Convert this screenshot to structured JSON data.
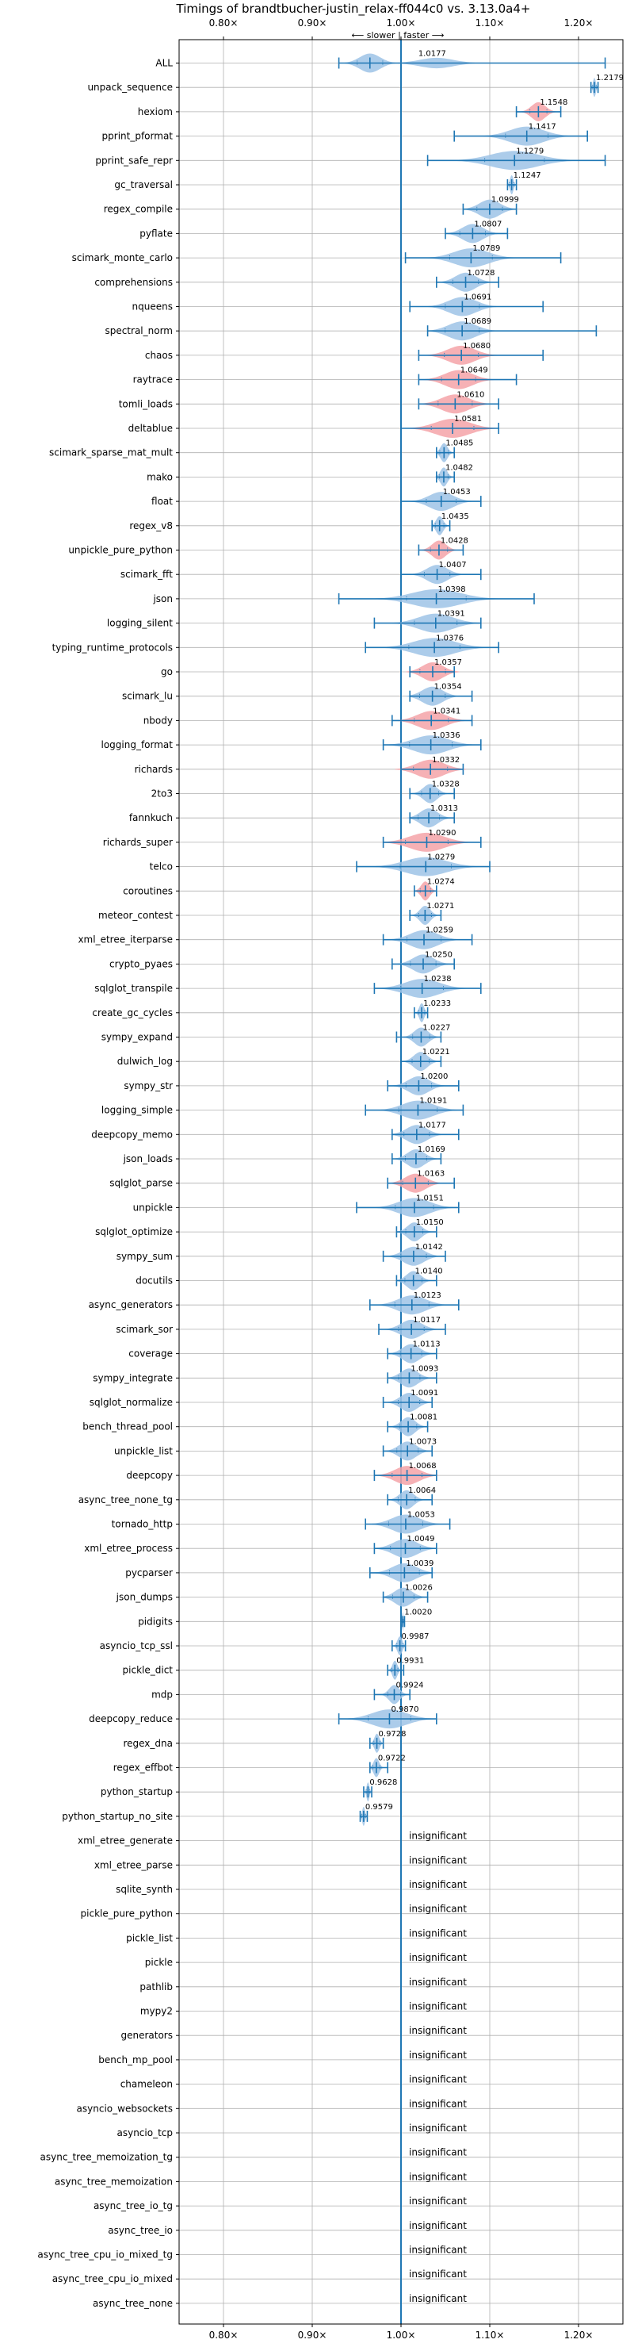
{
  "chart_data": {
    "type": "violin",
    "title": "Timings of brandtbucher-justin_relax-ff044c0 vs. 3.13.0a4+",
    "direction_label": "⟵ slower | faster ⟶",
    "xlim": [
      0.75,
      1.25
    ],
    "xticks": [
      0.8,
      0.9,
      1.0,
      1.1,
      1.2
    ],
    "xtick_labels": [
      "0.80×",
      "0.90×",
      "1.00×",
      "1.10×",
      "1.20×"
    ],
    "reference_line": 1.0,
    "grid": true,
    "colors": {
      "faster": "#9ec3e6",
      "slower": "#f4a3a8",
      "line": "#1f77b4"
    },
    "insignificant_label": "insignificant",
    "benchmarks": [
      {
        "name": "ALL",
        "mean": 0.965,
        "label": "1.0177",
        "min": 0.93,
        "max": 1.23,
        "color": "faster",
        "spread": 0.03,
        "secondary": {
          "mean": 1.04,
          "spread": 0.05
        }
      },
      {
        "name": "unpack_sequence",
        "mean": 1.2179,
        "label": "1.2179",
        "min": 1.214,
        "max": 1.222,
        "color": "faster",
        "spread": 0.004
      },
      {
        "name": "hexiom",
        "mean": 1.1548,
        "label": "1.1548",
        "min": 1.13,
        "max": 1.18,
        "color": "slower",
        "spread": 0.02
      },
      {
        "name": "pprint_pformat",
        "mean": 1.1417,
        "label": "1.1417",
        "min": 1.06,
        "max": 1.21,
        "color": "faster",
        "spread": 0.05
      },
      {
        "name": "pprint_safe_repr",
        "mean": 1.1279,
        "label": "1.1279",
        "min": 1.03,
        "max": 1.23,
        "color": "faster",
        "spread": 0.07
      },
      {
        "name": "gc_traversal",
        "mean": 1.1247,
        "label": "1.1247",
        "min": 1.12,
        "max": 1.13,
        "color": "faster",
        "spread": 0.005
      },
      {
        "name": "regex_compile",
        "mean": 1.0999,
        "label": "1.0999",
        "min": 1.07,
        "max": 1.13,
        "color": "faster",
        "spread": 0.03
      },
      {
        "name": "pyflate",
        "mean": 1.0807,
        "label": "1.0807",
        "min": 1.05,
        "max": 1.12,
        "color": "faster",
        "spread": 0.03
      },
      {
        "name": "scimark_monte_carlo",
        "mean": 1.0789,
        "label": "1.0789",
        "min": 1.005,
        "max": 1.18,
        "color": "faster",
        "spread": 0.05
      },
      {
        "name": "comprehensions",
        "mean": 1.0728,
        "label": "1.0728",
        "min": 1.04,
        "max": 1.11,
        "color": "faster",
        "spread": 0.03
      },
      {
        "name": "nqueens",
        "mean": 1.0691,
        "label": "1.0691",
        "min": 1.01,
        "max": 1.16,
        "color": "faster",
        "spread": 0.04
      },
      {
        "name": "spectral_norm",
        "mean": 1.0689,
        "label": "1.0689",
        "min": 1.03,
        "max": 1.22,
        "color": "faster",
        "spread": 0.04
      },
      {
        "name": "chaos",
        "mean": 1.068,
        "label": "1.0680",
        "min": 1.02,
        "max": 1.16,
        "color": "slower",
        "spread": 0.04
      },
      {
        "name": "raytrace",
        "mean": 1.0649,
        "label": "1.0649",
        "min": 1.02,
        "max": 1.13,
        "color": "slower",
        "spread": 0.04
      },
      {
        "name": "tomli_loads",
        "mean": 1.061,
        "label": "1.0610",
        "min": 1.02,
        "max": 1.11,
        "color": "slower",
        "spread": 0.04
      },
      {
        "name": "deltablue",
        "mean": 1.0581,
        "label": "1.0581",
        "min": 1.0,
        "max": 1.11,
        "color": "slower",
        "spread": 0.05
      },
      {
        "name": "scimark_sparse_mat_mult",
        "mean": 1.0485,
        "label": "1.0485",
        "min": 1.04,
        "max": 1.06,
        "color": "faster",
        "spread": 0.01
      },
      {
        "name": "mako",
        "mean": 1.0482,
        "label": "1.0482",
        "min": 1.04,
        "max": 1.06,
        "color": "faster",
        "spread": 0.01
      },
      {
        "name": "float",
        "mean": 1.0453,
        "label": "1.0453",
        "min": 1.0,
        "max": 1.09,
        "color": "faster",
        "spread": 0.035
      },
      {
        "name": "regex_v8",
        "mean": 1.0435,
        "label": "1.0435",
        "min": 1.035,
        "max": 1.055,
        "color": "faster",
        "spread": 0.01
      },
      {
        "name": "unpickle_pure_python",
        "mean": 1.0428,
        "label": "1.0428",
        "min": 1.02,
        "max": 1.07,
        "color": "slower",
        "spread": 0.02
      },
      {
        "name": "scimark_fft",
        "mean": 1.0407,
        "label": "1.0407",
        "min": 1.0,
        "max": 1.09,
        "color": "faster",
        "spread": 0.03
      },
      {
        "name": "json",
        "mean": 1.0398,
        "label": "1.0398",
        "min": 0.93,
        "max": 1.15,
        "color": "faster",
        "spread": 0.07
      },
      {
        "name": "logging_silent",
        "mean": 1.0391,
        "label": "1.0391",
        "min": 0.97,
        "max": 1.09,
        "color": "faster",
        "spread": 0.05
      },
      {
        "name": "typing_runtime_protocols",
        "mean": 1.0376,
        "label": "1.0376",
        "min": 0.96,
        "max": 1.11,
        "color": "faster",
        "spread": 0.06
      },
      {
        "name": "go",
        "mean": 1.0357,
        "label": "1.0357",
        "min": 1.01,
        "max": 1.06,
        "color": "slower",
        "spread": 0.03
      },
      {
        "name": "scimark_lu",
        "mean": 1.0354,
        "label": "1.0354",
        "min": 1.01,
        "max": 1.08,
        "color": "faster",
        "spread": 0.03
      },
      {
        "name": "nbody",
        "mean": 1.0341,
        "label": "1.0341",
        "min": 0.99,
        "max": 1.08,
        "color": "slower",
        "spread": 0.04
      },
      {
        "name": "logging_format",
        "mean": 1.0336,
        "label": "1.0336",
        "min": 0.98,
        "max": 1.09,
        "color": "faster",
        "spread": 0.05
      },
      {
        "name": "richards",
        "mean": 1.0332,
        "label": "1.0332",
        "min": 1.0,
        "max": 1.07,
        "color": "slower",
        "spread": 0.04
      },
      {
        "name": "2to3",
        "mean": 1.0328,
        "label": "1.0328",
        "min": 1.01,
        "max": 1.06,
        "color": "faster",
        "spread": 0.02
      },
      {
        "name": "fannkuch",
        "mean": 1.0313,
        "label": "1.0313",
        "min": 1.01,
        "max": 1.06,
        "color": "faster",
        "spread": 0.025
      },
      {
        "name": "richards_super",
        "mean": 1.029,
        "label": "1.0290",
        "min": 0.98,
        "max": 1.09,
        "color": "slower",
        "spread": 0.05
      },
      {
        "name": "telco",
        "mean": 1.0279,
        "label": "1.0279",
        "min": 0.95,
        "max": 1.1,
        "color": "faster",
        "spread": 0.06
      },
      {
        "name": "coroutines",
        "mean": 1.0274,
        "label": "1.0274",
        "min": 1.015,
        "max": 1.04,
        "color": "slower",
        "spread": 0.012
      },
      {
        "name": "meteor_contest",
        "mean": 1.0271,
        "label": "1.0271",
        "min": 1.01,
        "max": 1.045,
        "color": "faster",
        "spread": 0.015
      },
      {
        "name": "xml_etree_iterparse",
        "mean": 1.0259,
        "label": "1.0259",
        "min": 0.98,
        "max": 1.08,
        "color": "faster",
        "spread": 0.04
      },
      {
        "name": "crypto_pyaes",
        "mean": 1.025,
        "label": "1.0250",
        "min": 0.99,
        "max": 1.06,
        "color": "faster",
        "spread": 0.03
      },
      {
        "name": "sqlglot_transpile",
        "mean": 1.0238,
        "label": "1.0238",
        "min": 0.97,
        "max": 1.09,
        "color": "faster",
        "spread": 0.05
      },
      {
        "name": "create_gc_cycles",
        "mean": 1.0233,
        "label": "1.0233",
        "min": 1.015,
        "max": 1.03,
        "color": "faster",
        "spread": 0.007
      },
      {
        "name": "sympy_expand",
        "mean": 1.0227,
        "label": "1.0227",
        "min": 0.995,
        "max": 1.045,
        "color": "faster",
        "spread": 0.02
      },
      {
        "name": "dulwich_log",
        "mean": 1.0221,
        "label": "1.0221",
        "min": 1.0,
        "max": 1.045,
        "color": "faster",
        "spread": 0.02
      },
      {
        "name": "sympy_str",
        "mean": 1.02,
        "label": "1.0200",
        "min": 0.985,
        "max": 1.065,
        "color": "faster",
        "spread": 0.03
      },
      {
        "name": "logging_simple",
        "mean": 1.0191,
        "label": "1.0191",
        "min": 0.96,
        "max": 1.07,
        "color": "faster",
        "spread": 0.045
      },
      {
        "name": "deepcopy_memo",
        "mean": 1.0177,
        "label": "1.0177",
        "min": 0.99,
        "max": 1.065,
        "color": "faster",
        "spread": 0.03
      },
      {
        "name": "json_loads",
        "mean": 1.0169,
        "label": "1.0169",
        "min": 0.99,
        "max": 1.045,
        "color": "faster",
        "spread": 0.025
      },
      {
        "name": "sqlglot_parse",
        "mean": 1.0163,
        "label": "1.0163",
        "min": 0.985,
        "max": 1.06,
        "color": "slower",
        "spread": 0.03
      },
      {
        "name": "unpickle",
        "mean": 1.0151,
        "label": "1.0151",
        "min": 0.95,
        "max": 1.065,
        "color": "faster",
        "spread": 0.045
      },
      {
        "name": "sqlglot_optimize",
        "mean": 1.015,
        "label": "1.0150",
        "min": 0.995,
        "max": 1.04,
        "color": "faster",
        "spread": 0.02
      },
      {
        "name": "sympy_sum",
        "mean": 1.0142,
        "label": "1.0142",
        "min": 0.98,
        "max": 1.05,
        "color": "faster",
        "spread": 0.03
      },
      {
        "name": "docutils",
        "mean": 1.014,
        "label": "1.0140",
        "min": 0.995,
        "max": 1.04,
        "color": "faster",
        "spread": 0.02
      },
      {
        "name": "async_generators",
        "mean": 1.0123,
        "label": "1.0123",
        "min": 0.965,
        "max": 1.065,
        "color": "faster",
        "spread": 0.04
      },
      {
        "name": "scimark_sor",
        "mean": 1.0117,
        "label": "1.0117",
        "min": 0.975,
        "max": 1.05,
        "color": "faster",
        "spread": 0.03
      },
      {
        "name": "coverage",
        "mean": 1.0113,
        "label": "1.0113",
        "min": 0.985,
        "max": 1.04,
        "color": "faster",
        "spread": 0.025
      },
      {
        "name": "sympy_integrate",
        "mean": 1.0093,
        "label": "1.0093",
        "min": 0.985,
        "max": 1.04,
        "color": "faster",
        "spread": 0.025
      },
      {
        "name": "sqlglot_normalize",
        "mean": 1.0091,
        "label": "1.0091",
        "min": 0.98,
        "max": 1.035,
        "color": "faster",
        "spread": 0.025
      },
      {
        "name": "bench_thread_pool",
        "mean": 1.0081,
        "label": "1.0081",
        "min": 0.985,
        "max": 1.03,
        "color": "faster",
        "spread": 0.02
      },
      {
        "name": "unpickle_list",
        "mean": 1.0073,
        "label": "1.0073",
        "min": 0.98,
        "max": 1.035,
        "color": "faster",
        "spread": 0.025
      },
      {
        "name": "deepcopy",
        "mean": 1.0068,
        "label": "1.0068",
        "min": 0.97,
        "max": 1.04,
        "color": "slower",
        "spread": 0.035
      },
      {
        "name": "async_tree_none_tg",
        "mean": 1.0064,
        "label": "1.0064",
        "min": 0.985,
        "max": 1.035,
        "color": "faster",
        "spread": 0.02
      },
      {
        "name": "tornado_http",
        "mean": 1.0053,
        "label": "1.0053",
        "min": 0.96,
        "max": 1.055,
        "color": "faster",
        "spread": 0.04
      },
      {
        "name": "xml_etree_process",
        "mean": 1.0049,
        "label": "1.0049",
        "min": 0.97,
        "max": 1.04,
        "color": "faster",
        "spread": 0.035
      },
      {
        "name": "pycparser",
        "mean": 1.0039,
        "label": "1.0039",
        "min": 0.965,
        "max": 1.035,
        "color": "faster",
        "spread": 0.035
      },
      {
        "name": "json_dumps",
        "mean": 1.0026,
        "label": "1.0026",
        "min": 0.98,
        "max": 1.03,
        "color": "faster",
        "spread": 0.025
      },
      {
        "name": "pidigits",
        "mean": 1.002,
        "label": "1.0020",
        "min": 1.0,
        "max": 1.004,
        "color": "faster",
        "spread": 0.002
      },
      {
        "name": "asyncio_tcp_ssl",
        "mean": 0.9987,
        "label": "0.9987",
        "min": 0.99,
        "max": 1.005,
        "color": "faster",
        "spread": 0.007
      },
      {
        "name": "pickle_dict",
        "mean": 0.9931,
        "label": "0.9931",
        "min": 0.985,
        "max": 1.003,
        "color": "faster",
        "spread": 0.007
      },
      {
        "name": "mdp",
        "mean": 0.9924,
        "label": "0.9924",
        "min": 0.97,
        "max": 1.01,
        "color": "faster",
        "spread": 0.015
      },
      {
        "name": "deepcopy_reduce",
        "mean": 0.987,
        "label": "0.9870",
        "min": 0.93,
        "max": 1.04,
        "color": "faster",
        "spread": 0.05
      },
      {
        "name": "regex_dna",
        "mean": 0.9728,
        "label": "0.9728",
        "min": 0.965,
        "max": 0.98,
        "color": "faster",
        "spread": 0.007
      },
      {
        "name": "regex_effbot",
        "mean": 0.9722,
        "label": "0.9722",
        "min": 0.965,
        "max": 0.985,
        "color": "faster",
        "spread": 0.008
      },
      {
        "name": "python_startup",
        "mean": 0.9628,
        "label": "0.9628",
        "min": 0.958,
        "max": 0.967,
        "color": "faster",
        "spread": 0.004
      },
      {
        "name": "python_startup_no_site",
        "mean": 0.9579,
        "label": "0.9579",
        "min": 0.954,
        "max": 0.962,
        "color": "faster",
        "spread": 0.004
      },
      {
        "name": "xml_etree_generate",
        "insignificant": true
      },
      {
        "name": "xml_etree_parse",
        "insignificant": true
      },
      {
        "name": "sqlite_synth",
        "insignificant": true
      },
      {
        "name": "pickle_pure_python",
        "insignificant": true
      },
      {
        "name": "pickle_list",
        "insignificant": true
      },
      {
        "name": "pickle",
        "insignificant": true
      },
      {
        "name": "pathlib",
        "insignificant": true
      },
      {
        "name": "mypy2",
        "insignificant": true
      },
      {
        "name": "generators",
        "insignificant": true
      },
      {
        "name": "bench_mp_pool",
        "insignificant": true
      },
      {
        "name": "chameleon",
        "insignificant": true
      },
      {
        "name": "asyncio_websockets",
        "insignificant": true
      },
      {
        "name": "asyncio_tcp",
        "insignificant": true
      },
      {
        "name": "async_tree_memoization_tg",
        "insignificant": true
      },
      {
        "name": "async_tree_memoization",
        "insignificant": true
      },
      {
        "name": "async_tree_io_tg",
        "insignificant": true
      },
      {
        "name": "async_tree_io",
        "insignificant": true
      },
      {
        "name": "async_tree_cpu_io_mixed_tg",
        "insignificant": true
      },
      {
        "name": "async_tree_cpu_io_mixed",
        "insignificant": true
      },
      {
        "name": "async_tree_none",
        "insignificant": true
      }
    ]
  }
}
